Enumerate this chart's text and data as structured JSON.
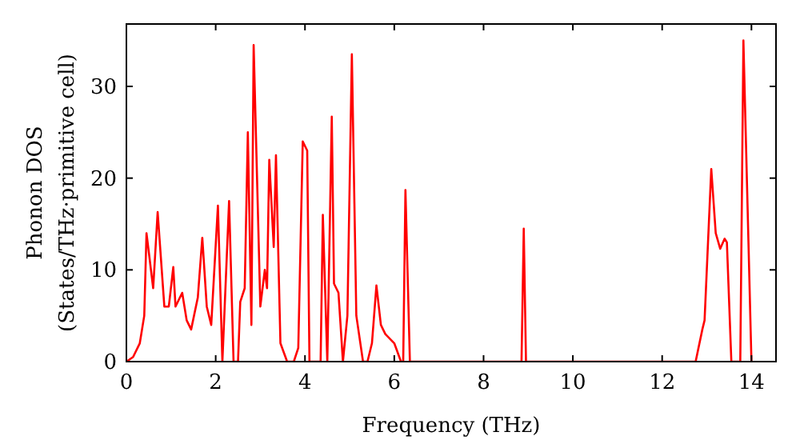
{
  "chart_data": {
    "type": "line",
    "xlabel": "Frequency (THz)",
    "ylabel": "Phonon DOS\n(States/THz·primitive cell)",
    "xlim": [
      0,
      14.55
    ],
    "ylim": [
      0,
      36.8
    ],
    "xticks": [
      0,
      2,
      4,
      6,
      8,
      10,
      12,
      14
    ],
    "yticks": [
      0,
      10,
      20,
      30
    ],
    "grid": false,
    "line_style": "solid",
    "series": [
      {
        "color": "#ff0000",
        "x": [
          0,
          0.15,
          0.3,
          0.4,
          0.45,
          0.6,
          0.7,
          0.85,
          0.95,
          1.05,
          1.1,
          1.25,
          1.35,
          1.45,
          1.6,
          1.7,
          1.8,
          1.9,
          2.05,
          2.15,
          2.3,
          2.4,
          2.5,
          2.55,
          2.65,
          2.72,
          2.8,
          2.85,
          3.0,
          3.1,
          3.15,
          3.2,
          3.3,
          3.35,
          3.45,
          3.6,
          3.75,
          3.85,
          3.95,
          4.05,
          4.1,
          4.35,
          4.4,
          4.5,
          4.6,
          4.65,
          4.75,
          4.85,
          4.95,
          5.05,
          5.15,
          5.3,
          5.4,
          5.5,
          5.6,
          5.7,
          5.8,
          6.0,
          6.15,
          6.2,
          6.25,
          6.35,
          8.85,
          8.9,
          8.95,
          12.75,
          12.9,
          12.95,
          13.1,
          13.2,
          13.3,
          13.4,
          13.45,
          13.55,
          13.75,
          13.82,
          14.0
        ],
        "values": [
          0,
          0.5,
          2,
          5,
          14,
          8,
          16.3,
          6,
          6,
          10.3,
          6,
          7.5,
          4.5,
          3.5,
          7,
          13.5,
          6,
          4,
          17,
          0,
          17.5,
          0,
          0,
          6.5,
          8,
          25,
          4,
          34.5,
          6,
          10,
          8,
          22,
          12.5,
          22.5,
          2,
          0,
          0,
          1.5,
          24,
          23,
          0,
          0,
          16,
          0,
          26.7,
          8.5,
          7.5,
          0,
          5,
          33.5,
          5,
          0,
          0,
          2,
          8.3,
          4,
          3,
          2,
          0,
          0,
          18.7,
          0,
          0,
          14.5,
          0,
          0,
          3.5,
          4.5,
          21,
          14,
          12.3,
          13.4,
          13,
          0,
          0,
          35,
          0
        ]
      }
    ]
  }
}
